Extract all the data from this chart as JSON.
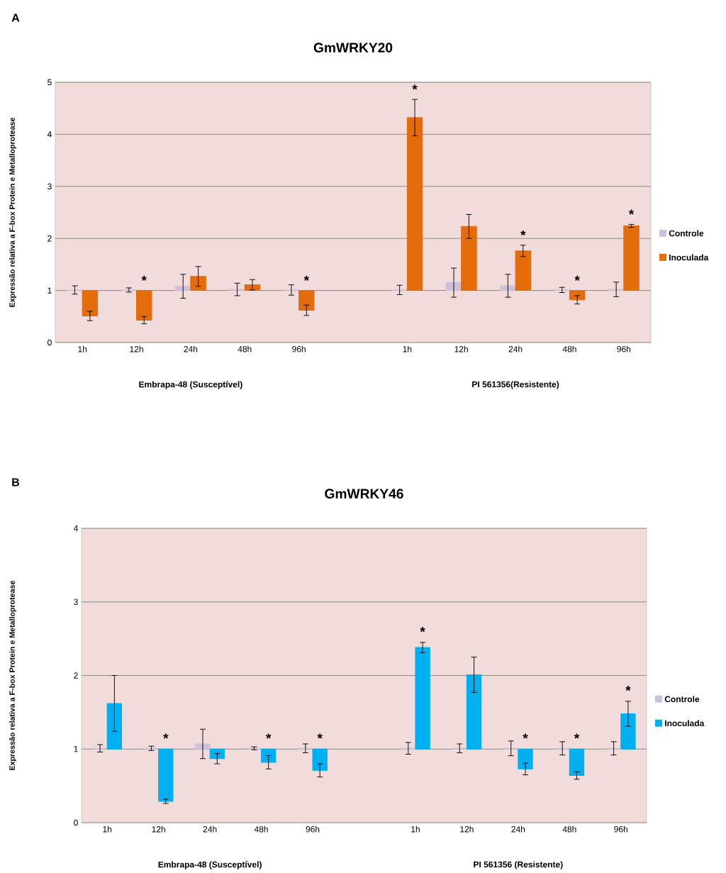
{
  "chart_data": [
    {
      "type": "bar",
      "title": "GmWRKY20",
      "ylabel": "Expressão relativa a F-box Protein e Metalloprotease",
      "categories": [
        "1h",
        "12h",
        "24h",
        "48h",
        "96h",
        null,
        "1h",
        "12h",
        "24h",
        "48h",
        "96h"
      ],
      "series": [
        {
          "name": "Controle",
          "color": "#ccc0da",
          "base": [
            1,
            1,
            1,
            1,
            1,
            null,
            1,
            1,
            1,
            1,
            1
          ],
          "values": [
            0.01,
            0.01,
            0.08,
            0.02,
            0.01,
            null,
            0.01,
            0.15,
            0.09,
            0.01,
            0.02
          ],
          "errors": [
            0.08,
            0.04,
            0.23,
            0.12,
            0.1,
            null,
            0.09,
            0.28,
            0.22,
            0.05,
            0.14
          ]
        },
        {
          "name": "Inoculada",
          "color": "#e46c0a",
          "base": [
            1,
            1,
            1,
            1,
            1,
            null,
            1,
            1,
            1,
            1,
            1
          ],
          "values": [
            -0.49,
            -0.57,
            0.27,
            0.11,
            -0.38,
            null,
            3.32,
            1.23,
            0.76,
            -0.18,
            1.24
          ],
          "errors": [
            0.09,
            0.07,
            0.19,
            0.1,
            0.1,
            null,
            0.35,
            0.23,
            0.11,
            0.08,
            0.03
          ],
          "value_labels": [
            null,
            "*",
            null,
            null,
            "*",
            null,
            "*",
            null,
            "*",
            "*",
            "*"
          ]
        }
      ],
      "ylim": [
        0,
        5
      ],
      "yticks": [
        0,
        1,
        2,
        3,
        4,
        5
      ],
      "grid": "y",
      "legend": "right",
      "annotations": [
        "A",
        "Embrapa-48 (Susceptível)",
        "PI 561356(Resistente)"
      ]
    },
    {
      "type": "bar",
      "title": "GmWRKY46",
      "ylabel": "Expressão relativa a F-box Protein e Metalloprotease",
      "categories": [
        "1h",
        "12h",
        "24h",
        "48h",
        "96h",
        null,
        "1h",
        "12h",
        "24h",
        "48h",
        "96h"
      ],
      "series": [
        {
          "name": "Controle",
          "color": "#ccc0da",
          "base": [
            1,
            1,
            1,
            1,
            1,
            null,
            1,
            1,
            1,
            1,
            1
          ],
          "values": [
            0.01,
            0.01,
            0.07,
            0.01,
            0.01,
            null,
            0.01,
            0.01,
            0.01,
            0.01,
            0.01
          ],
          "errors": [
            0.05,
            0.03,
            0.2,
            0.02,
            0.06,
            null,
            0.08,
            0.06,
            0.1,
            0.09,
            0.09
          ]
        },
        {
          "name": "Inoculada",
          "color": "#00b0f0",
          "base": [
            1,
            1,
            1,
            1,
            1,
            null,
            1,
            1,
            1,
            1,
            1
          ],
          "values": [
            0.62,
            -0.71,
            -0.13,
            -0.18,
            -0.29,
            null,
            1.38,
            1.01,
            -0.27,
            -0.36,
            0.48
          ],
          "errors": [
            0.38,
            0.03,
            0.07,
            0.09,
            0.09,
            null,
            0.07,
            0.24,
            0.08,
            0.05,
            0.17
          ],
          "value_labels": [
            null,
            "*",
            null,
            "*",
            "*",
            null,
            "*",
            null,
            "*",
            "*",
            "*"
          ]
        }
      ],
      "ylim": [
        0,
        4
      ],
      "yticks": [
        0,
        1,
        2,
        3,
        4
      ],
      "grid": "y",
      "legend": "right",
      "annotations": [
        "B",
        "Embrapa-48 (Susceptível)",
        "PI 561356 (Resistente)"
      ]
    }
  ]
}
